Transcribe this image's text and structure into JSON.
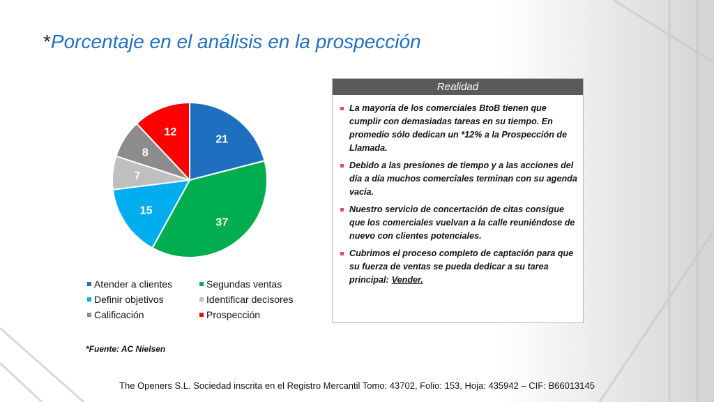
{
  "chart_data": {
    "type": "pie",
    "title_prefix": "*",
    "title": "Porcentaje en el análisis en la prospección",
    "categories": [
      "Atender a clientes",
      "Segundas ventas",
      "Definir objetivos",
      "Identificar decisores",
      "Calificación",
      "Prospección"
    ],
    "values": [
      21,
      37,
      15,
      7,
      8,
      12
    ],
    "colors": [
      "#1f6fc0",
      "#00ad4f",
      "#00aeef",
      "#bfbfbf",
      "#8c8c8c",
      "#ff0000"
    ],
    "source": "*Fuente: AC Nielsen"
  },
  "panel": {
    "header": "Realidad",
    "bullets": [
      "La mayoría de los comerciales BtoB tienen que cumplir con demasiadas tareas en su tiempo. En promedio sólo dedican un *12%  a la Prospección de Llamada.",
      "Debido a las presiones de tiempo y a las acciones del día a día muchos comerciales terminan con su agenda vacía.",
      "Nuestro servicio de concertación de citas consigue que los comerciales vuelvan a la calle reuniéndose de nuevo con clientes potenciales.",
      "Cubrimos el proceso completo de captación para que su fuerza de ventas se pueda dedicar a su tarea principal:"
    ],
    "last_link": "Vender."
  },
  "footer": "The Openers S.L. Sociedad inscrita en el Registro Mercantil Tomo: 43702, Folio: 153, Hoja: 435942 – CIF: B66013145"
}
